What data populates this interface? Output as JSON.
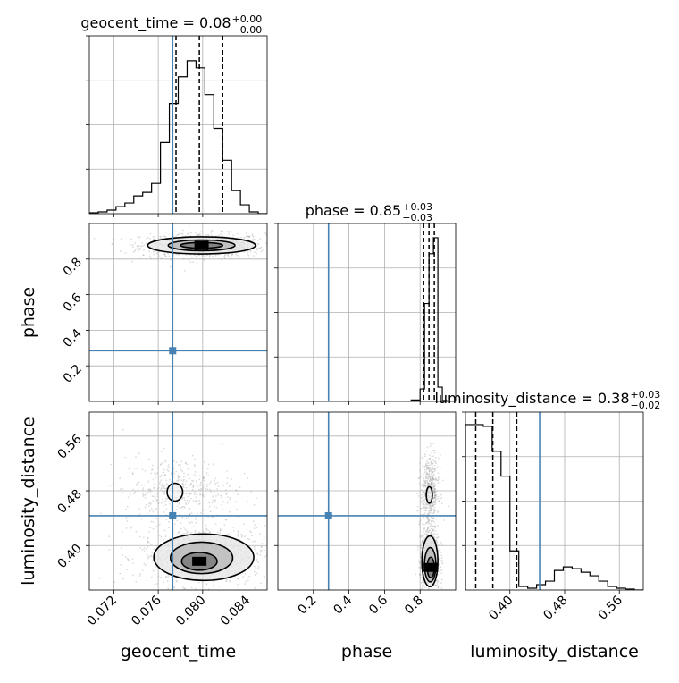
{
  "colors": {
    "truth": "#4682b4",
    "hist": "#000000",
    "quantile": "#000000",
    "grid": "#b0b0b0",
    "sample": "#9a9a9a"
  },
  "chart_data": {
    "type": "corner",
    "parameters": [
      "geocent_time",
      "phase",
      "luminosity_distance"
    ],
    "truths": {
      "geocent_time": 0.0773,
      "phase": 0.285,
      "luminosity_distance": 0.4435
    },
    "ranges": {
      "geocent_time": [
        0.0698,
        0.0858
      ],
      "phase": [
        0.0,
        1.0
      ],
      "luminosity_distance": [
        0.335,
        0.595
      ]
    },
    "ticks": {
      "geocent_time": [
        "0.072",
        "0.076",
        "0.080",
        "0.084"
      ],
      "phase": [
        "0.2",
        "0.4",
        "0.6",
        "0.8"
      ],
      "phase_y": [
        "0.2",
        "0.4",
        "0.6",
        "0.8"
      ],
      "luminosity_distance": [
        "0.40",
        "0.48",
        "0.56"
      ]
    },
    "axis_labels": {
      "x": [
        "geocent_time",
        "phase",
        "luminosity_distance"
      ],
      "y": [
        "phase",
        "luminosity_distance"
      ]
    },
    "titles": [
      {
        "param": "geocent_time",
        "text": "geocent_time = 0.08",
        "plus": "+0.00",
        "minus": "−0.00"
      },
      {
        "param": "phase",
        "text": "phase = 0.85",
        "plus": "+0.03",
        "minus": "−0.03"
      },
      {
        "param": "luminosity_distance",
        "text": "luminosity_distance = 0.38",
        "plus": "+0.03",
        "minus": "−0.02"
      }
    ],
    "histograms": {
      "geocent_time": {
        "edges": [
          0.0698,
          0.0706,
          0.0714,
          0.0722,
          0.073,
          0.0738,
          0.0746,
          0.0754,
          0.0762,
          0.077,
          0.0778,
          0.0786,
          0.0794,
          0.0802,
          0.081,
          0.0818,
          0.0826,
          0.0834,
          0.0842,
          0.085,
          0.0858
        ],
        "counts": [
          0.005,
          0.01,
          0.02,
          0.04,
          0.06,
          0.1,
          0.12,
          0.17,
          0.4,
          0.62,
          0.77,
          0.86,
          0.82,
          0.67,
          0.48,
          0.3,
          0.13,
          0.05,
          0.01,
          0.0
        ],
        "quantiles": [
          0.0776,
          0.0797,
          0.0818
        ],
        "ylim": [
          0,
          1.0
        ]
      },
      "phase": {
        "edges": [
          0.0,
          0.05,
          0.1,
          0.15,
          0.2,
          0.25,
          0.3,
          0.35,
          0.4,
          0.45,
          0.5,
          0.55,
          0.6,
          0.65,
          0.7,
          0.75,
          0.8,
          0.825,
          0.85,
          0.875,
          0.9,
          0.925,
          0.95,
          0.975,
          1.0
        ],
        "counts": [
          0,
          0,
          0,
          0,
          0,
          0,
          0,
          0,
          0,
          0,
          0,
          0,
          0,
          0,
          0,
          0.008,
          0.07,
          0.55,
          0.83,
          0.92,
          0.08,
          0.005,
          0.0,
          0.0
        ],
        "quantiles": [
          0.82,
          0.85,
          0.88
        ],
        "ylim": [
          0,
          1.0
        ]
      },
      "luminosity_distance": {
        "edges": [
          0.335,
          0.348,
          0.361,
          0.374,
          0.387,
          0.4,
          0.413,
          0.426,
          0.439,
          0.452,
          0.465,
          0.478,
          0.491,
          0.504,
          0.517,
          0.53,
          0.543,
          0.556,
          0.569,
          0.582,
          0.595
        ],
        "counts": [
          0.93,
          0.93,
          0.92,
          0.78,
          0.64,
          0.22,
          0.02,
          0.01,
          0.03,
          0.05,
          0.11,
          0.13,
          0.12,
          0.1,
          0.08,
          0.05,
          0.02,
          0.01,
          0.005,
          0.0
        ],
        "quantiles": [
          0.35,
          0.375,
          0.41
        ],
        "ylim": [
          0,
          1.0
        ]
      }
    },
    "contours_2d": {
      "geocent_time__phase": {
        "x": "geocent_time",
        "y": "phase",
        "levels": [
          {
            "cx": 0.0799,
            "cy": 0.877,
            "rx": 0.00485,
            "ry": 0.048
          },
          {
            "cx": 0.0799,
            "cy": 0.877,
            "rx": 0.003,
            "ry": 0.03
          },
          {
            "cx": 0.0799,
            "cy": 0.877,
            "rx": 0.0019,
            "ry": 0.016
          }
        ],
        "cloud": {
          "cx": 0.08,
          "cy": 0.875,
          "sx": 0.0028,
          "sy": 0.035,
          "n": 900
        }
      },
      "geocent_time__luminosity_distance": {
        "x": "geocent_time",
        "y": "luminosity_distance",
        "levels": [
          {
            "cx": 0.0801,
            "cy": 0.383,
            "rx": 0.0045,
            "ry": 0.034
          },
          {
            "cx": 0.0799,
            "cy": 0.382,
            "rx": 0.0028,
            "ry": 0.023
          },
          {
            "cx": 0.0797,
            "cy": 0.377,
            "rx": 0.0016,
            "ry": 0.013
          },
          {
            "cx": 0.0775,
            "cy": 0.478,
            "rx": 0.0007,
            "ry": 0.013
          }
        ],
        "cloud_main": {
          "cx": 0.08,
          "cy": 0.385,
          "sx": 0.0028,
          "sy": 0.022,
          "n": 850
        },
        "cloud_secondary": {
          "cx": 0.0778,
          "cy": 0.48,
          "sx": 0.0025,
          "sy": 0.025,
          "n": 450
        }
      },
      "phase__luminosity_distance": {
        "x": "phase",
        "y": "luminosity_distance",
        "levels": [
          {
            "cx": 0.855,
            "cy": 0.377,
            "rx": 0.045,
            "ry": 0.037
          },
          {
            "cx": 0.857,
            "cy": 0.372,
            "rx": 0.032,
            "ry": 0.025
          },
          {
            "cx": 0.86,
            "cy": 0.368,
            "rx": 0.02,
            "ry": 0.015
          },
          {
            "cx": 0.852,
            "cy": 0.474,
            "rx": 0.017,
            "ry": 0.012
          }
        ],
        "cloud_main": {
          "cx": 0.855,
          "cy": 0.38,
          "sx": 0.028,
          "sy": 0.025,
          "n": 750
        },
        "cloud_secondary": {
          "cx": 0.855,
          "cy": 0.48,
          "sx": 0.025,
          "sy": 0.025,
          "n": 500
        }
      }
    }
  }
}
